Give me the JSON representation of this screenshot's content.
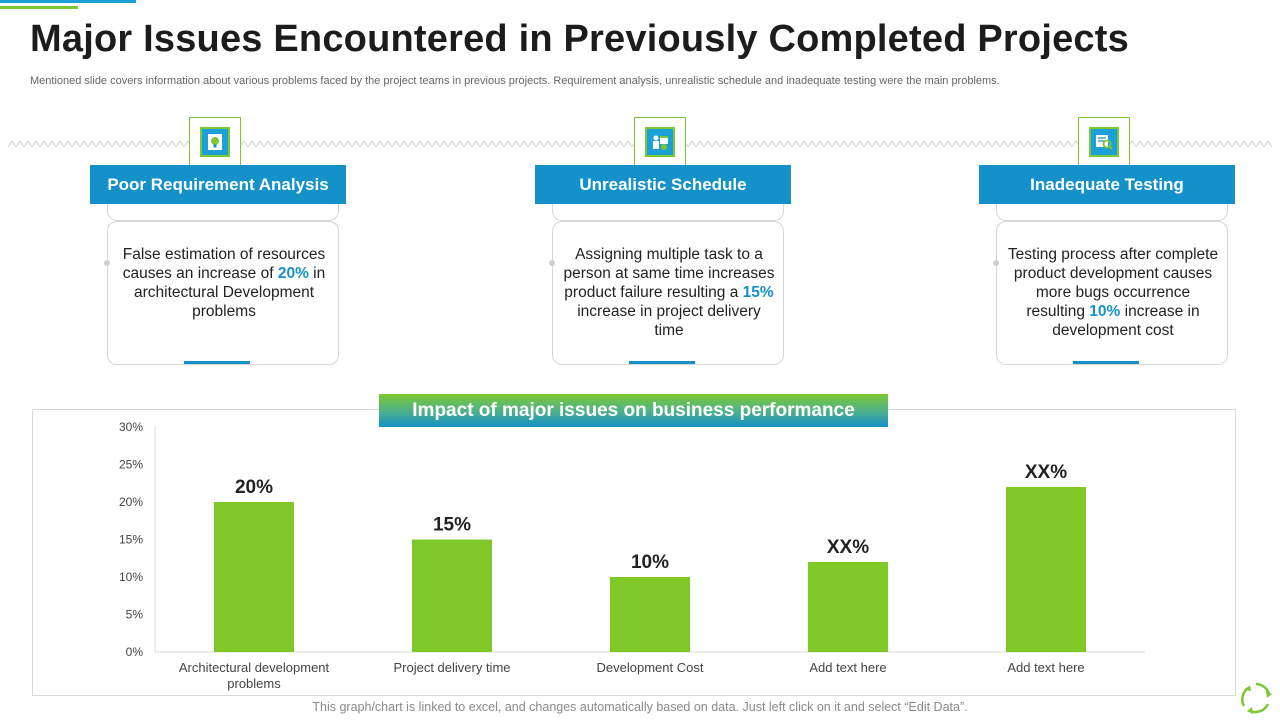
{
  "slide": {
    "title": "Major Issues Encountered in Previously Completed Projects",
    "subtitle": "Mentioned slide covers information about various problems faced by the project teams in previous projects. Requirement analysis, unrealistic schedule and inadequate testing were the main problems.",
    "footnote": "This graph/chart is linked to excel, and changes automatically based on data. Just left click on it and select “Edit Data”."
  },
  "cards": [
    {
      "icon": "lightbulb-document-icon",
      "heading": "Poor Requirement Analysis",
      "text_before": "False estimation of resources causes an increase of ",
      "highlight": "20%",
      "text_after": " in architectural Development problems"
    },
    {
      "icon": "calendar-person-icon",
      "heading": "Unrealistic Schedule",
      "text_before": "Assigning multiple task to a person at same time increases product failure resulting a ",
      "highlight": "15%",
      "text_after": " increase in project delivery time"
    },
    {
      "icon": "magnifier-checklist-icon",
      "heading": "Inadequate Testing",
      "text_before": "Testing process after complete product development causes more bugs occurrence resulting ",
      "highlight": "10%",
      "text_after": " increase in development cost"
    }
  ],
  "colors": {
    "accent_blue": "#1591c9",
    "accent_green": "#7dc832",
    "bar_green": "#80c828"
  },
  "chart_data": {
    "type": "bar",
    "title": "Impact of major issues on business performance",
    "categories": [
      "Architectural development problems",
      "Project delivery time",
      "Development Cost",
      "Add text here",
      "Add text here"
    ],
    "values": [
      20,
      15,
      10,
      12,
      22
    ],
    "data_labels": [
      "20%",
      "15%",
      "10%",
      "XX%",
      "XX%"
    ],
    "ylim": [
      0,
      30
    ],
    "yticks": [
      "0%",
      "5%",
      "10%",
      "15%",
      "20%",
      "25%",
      "30%"
    ],
    "grid": false,
    "legend": "none"
  }
}
